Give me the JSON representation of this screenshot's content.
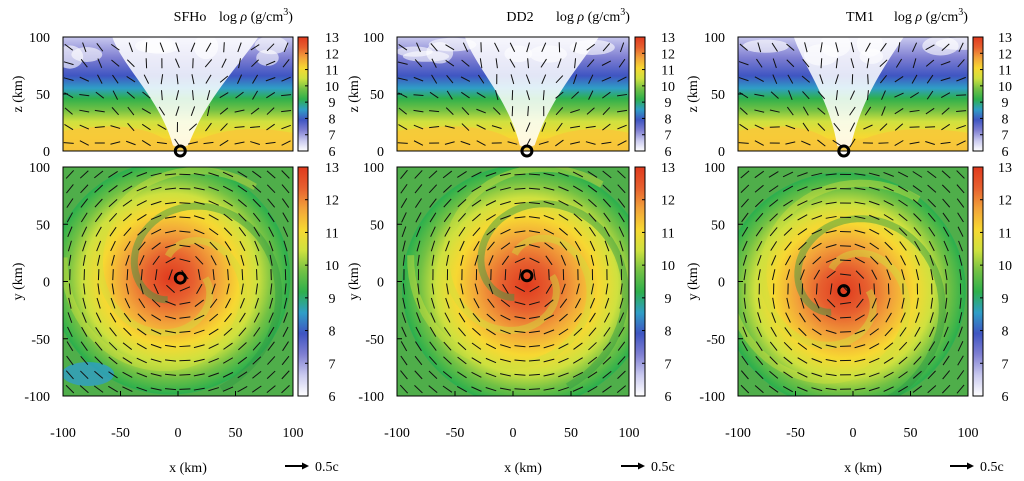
{
  "figure": {
    "cbar_label_prefix": "log",
    "cbar_label_symbol": "ρ",
    "cbar_label_unit": "(g/cm",
    "cbar_label_exp": "3",
    "cbar_label_close": ")",
    "side_xlabel": "z (km)",
    "top_ylabel": "y (km)",
    "bottom_xlabel": "x (km)",
    "arrow_scale_label": "0.5c"
  },
  "colors": {
    "colormap": [
      "#ffffff",
      "#c9c9ef",
      "#7f7fd2",
      "#3f55c2",
      "#2f9ec6",
      "#2eb04c",
      "#72c144",
      "#cfe13f",
      "#f7d832",
      "#f2a33a",
      "#e7602f",
      "#e03a1e"
    ]
  },
  "chart_data": [
    {
      "type": "heatmap",
      "title": "SFHo",
      "panels": [
        {
          "view": "x-z",
          "xlim": [
            -100,
            100
          ],
          "ylim": [
            0,
            100
          ],
          "yticks": [
            0,
            50,
            100
          ]
        },
        {
          "view": "x-y",
          "xlim": [
            -100,
            100
          ],
          "ylim": [
            -100,
            100
          ],
          "xticks": [
            -100,
            -50,
            0,
            50,
            100
          ],
          "yticks": [
            -100,
            -50,
            0,
            50,
            100
          ]
        }
      ],
      "colorbar": {
        "label": "log ρ (g/cm3)",
        "range": [
          6,
          13
        ],
        "ticks": [
          6,
          7,
          8,
          9,
          10,
          11,
          12,
          13
        ]
      },
      "center_xy": [
        2,
        3
      ],
      "center_xz": [
        2,
        0
      ]
    },
    {
      "type": "heatmap",
      "title": "DD2",
      "panels": [
        {
          "view": "x-z",
          "xlim": [
            -100,
            100
          ],
          "ylim": [
            0,
            100
          ],
          "yticks": [
            0,
            50,
            100
          ]
        },
        {
          "view": "x-y",
          "xlim": [
            -100,
            100
          ],
          "ylim": [
            -100,
            100
          ],
          "xticks": [
            -100,
            -50,
            0,
            50,
            100
          ],
          "yticks": [
            -100,
            -50,
            0,
            50,
            100
          ]
        }
      ],
      "colorbar": {
        "label": "log ρ (g/cm3)",
        "range": [
          6,
          13
        ],
        "ticks": [
          6,
          7,
          8,
          9,
          10,
          11,
          12,
          13
        ]
      },
      "center_xy": [
        12,
        5
      ],
      "center_xz": [
        12,
        0
      ]
    },
    {
      "type": "heatmap",
      "title": "TM1",
      "panels": [
        {
          "view": "x-z",
          "xlim": [
            -100,
            100
          ],
          "ylim": [
            0,
            100
          ],
          "yticks": [
            0,
            50,
            100
          ]
        },
        {
          "view": "x-y",
          "xlim": [
            -100,
            100
          ],
          "ylim": [
            -100,
            100
          ],
          "xticks": [
            -100,
            -50,
            0,
            50,
            100
          ],
          "yticks": [
            -100,
            -50,
            0,
            50,
            100
          ]
        }
      ],
      "colorbar": {
        "label": "log ρ (g/cm3)",
        "range": [
          6,
          13
        ],
        "ticks": [
          6,
          7,
          8,
          9,
          10,
          11,
          12,
          13
        ]
      },
      "center_xy": [
        -8,
        -8
      ],
      "center_xz": [
        -8,
        0
      ]
    }
  ]
}
